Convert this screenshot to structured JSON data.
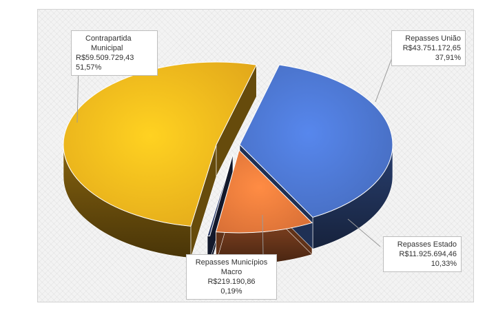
{
  "chart_data": {
    "type": "pie",
    "variant": "3d-exploded",
    "title": "",
    "legend": "none",
    "slices": [
      {
        "label": "Repasses União",
        "value": 43751172.65,
        "value_text": "R$43.751.172,65",
        "percent": 37.91,
        "percent_text": "37,91%",
        "color": "#4a72c9"
      },
      {
        "label": "Repasses Estado",
        "value": 11925694.46,
        "value_text": "R$11.925.694,46",
        "percent": 10.33,
        "percent_text": "10,33%",
        "color": "#e8773a"
      },
      {
        "label": "Repasses Municípios Macro",
        "value": 219190.86,
        "value_text": "R$219.190,86",
        "percent": 0.19,
        "percent_text": "0,19%",
        "color": "#2a3a66"
      },
      {
        "label": "Contrapartida Municipal",
        "value": 59509729.43,
        "value_text": "R$59.509.729,43",
        "percent": 51.57,
        "percent_text": "51,57%",
        "color": "#f2b21c"
      }
    ],
    "callouts": {
      "uniao": {
        "line1": "Repasses União",
        "line2": "R$43.751.172,65",
        "line3": "37,91%"
      },
      "estado": {
        "line1": "Repasses Estado",
        "line2": "R$11.925.694,46",
        "line3": "10,33%"
      },
      "macro": {
        "line1": "Repasses Municípios",
        "line2": "Macro",
        "line3": "R$219.190,86",
        "line4": "0,19%"
      },
      "contrapartida": {
        "line1": "Contrapartida",
        "line2": "Municipal",
        "line3": "R$59.509.729,43",
        "line4": "51,57%"
      }
    }
  }
}
